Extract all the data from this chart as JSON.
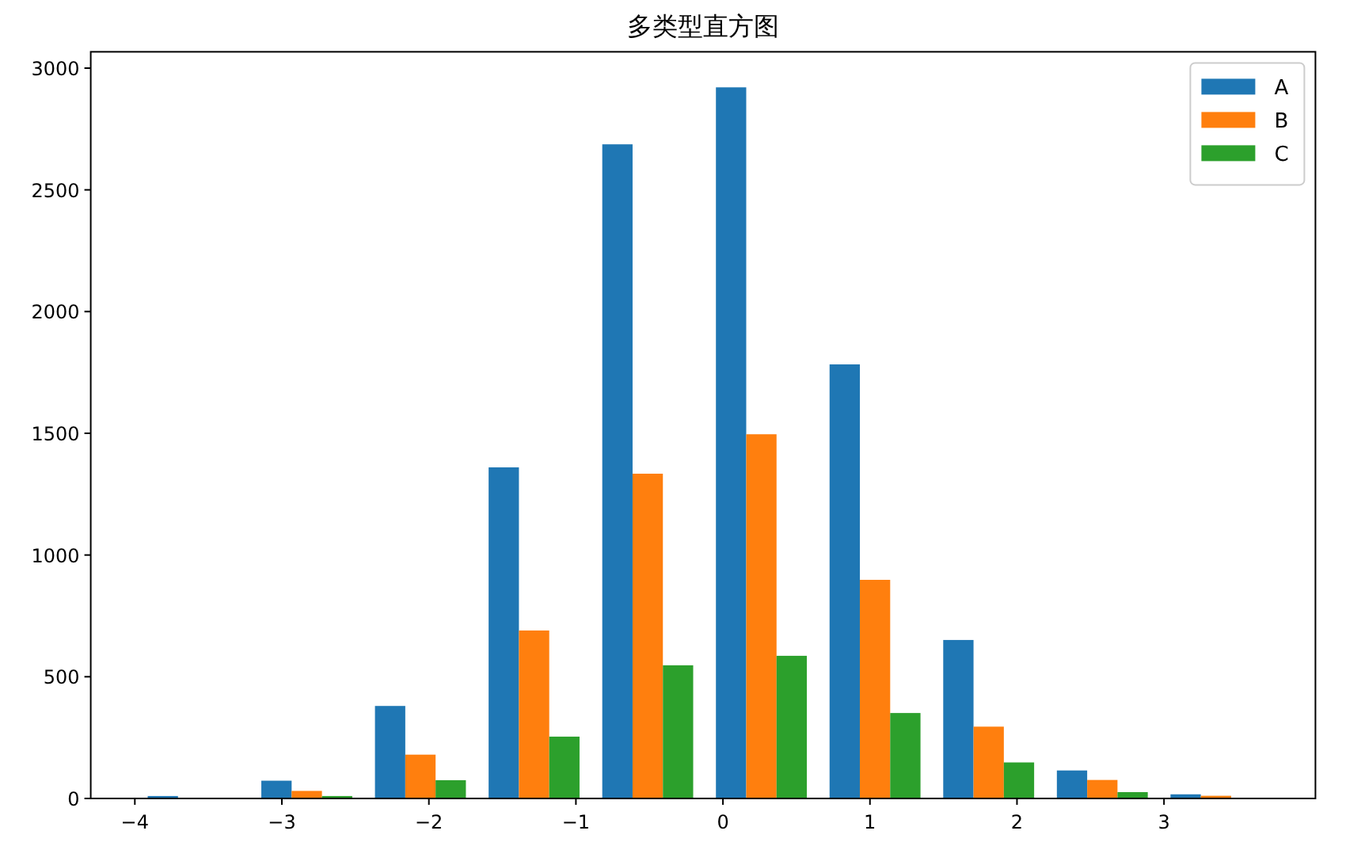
{
  "chart_data": {
    "type": "histogram",
    "title": "多类型直方图",
    "bins": [
      -3.99,
      -3.217,
      -2.444,
      -1.671,
      -0.898,
      -0.125,
      0.648,
      1.421,
      2.194,
      2.967,
      3.74
    ],
    "series": [
      {
        "name": "A",
        "color": "#1f77b4",
        "values": [
          10,
          73,
          380,
          1360,
          2687,
          2921,
          1783,
          651,
          115,
          17
        ]
      },
      {
        "name": "B",
        "color": "#ff7f0e",
        "values": [
          0,
          31,
          180,
          690,
          1334,
          1496,
          898,
          295,
          76,
          11
        ]
      },
      {
        "name": "C",
        "color": "#2ca02c",
        "values": [
          0,
          10,
          75,
          254,
          547,
          586,
          351,
          148,
          26,
          0
        ]
      }
    ],
    "xlim": [
      -4.3,
      4.03
    ],
    "ylim": [
      0,
      3067
    ],
    "xticks": [
      -4,
      -3,
      -2,
      -1,
      0,
      1,
      2,
      3
    ],
    "yticks": [
      0,
      500,
      1000,
      1500,
      2000,
      2500,
      3000
    ],
    "legend": "top right"
  }
}
